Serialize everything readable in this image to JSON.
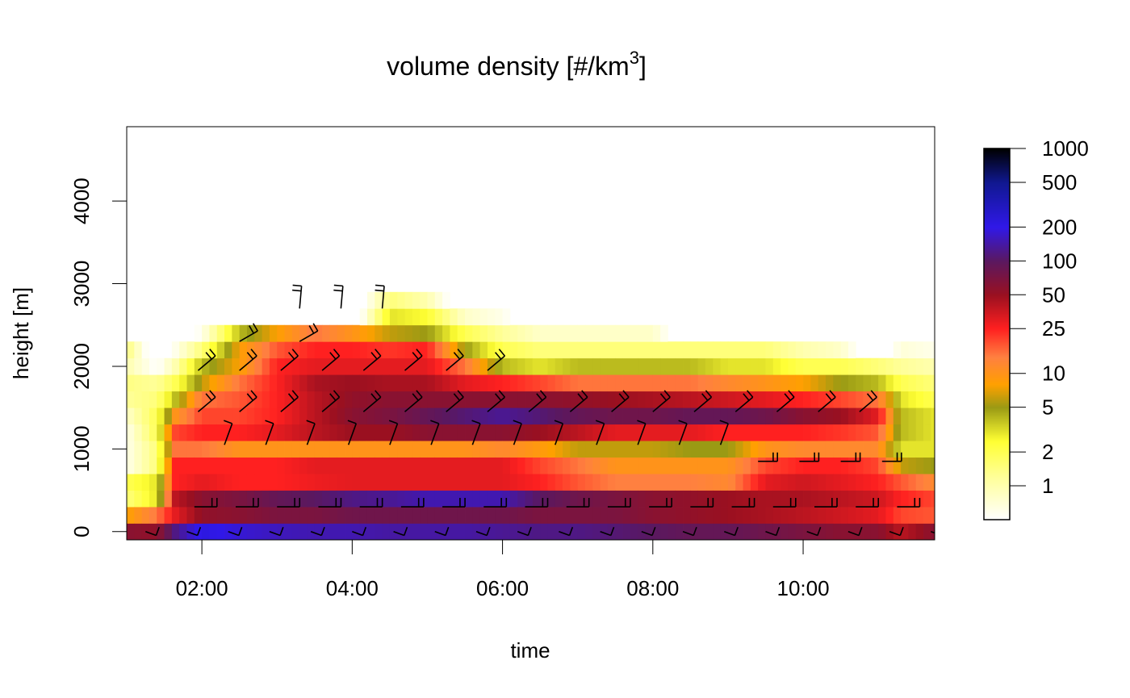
{
  "chart_data": {
    "type": "heatmap",
    "title": "volume density [#/km",
    "title_superscript": "3",
    "title_suffix": "]",
    "xlabel": "time",
    "ylabel": "height [m]",
    "x_ticks": [
      "02:00",
      "04:00",
      "06:00",
      "08:00",
      "10:00"
    ],
    "x_tick_hours": [
      2,
      4,
      6,
      8,
      10
    ],
    "xlim_hours": [
      1.0,
      11.75
    ],
    "y_ticks": [
      "0",
      "1000",
      "2000",
      "3000",
      "4000"
    ],
    "y_tick_values": [
      0,
      1000,
      2000,
      3000,
      4000
    ],
    "ylim_m": [
      -100,
      4900
    ],
    "height_bins_m": [
      0,
      200,
      400,
      600,
      800,
      1000,
      1200,
      1400,
      1600,
      1800,
      2000,
      2200,
      2400,
      2600,
      2800,
      3000,
      3200
    ],
    "time_step_hours": 0.1,
    "time_start_hours": 1.0,
    "time_end_hours": 11.75,
    "colorbar": {
      "scale": "log",
      "min": 0.5,
      "max": 1000,
      "tick_values": [
        1,
        2,
        5,
        10,
        25,
        50,
        100,
        200,
        500,
        1000
      ],
      "tick_labels": [
        "1",
        "2",
        "5",
        "10",
        "25",
        "50",
        "100",
        "200",
        "500",
        "1000"
      ],
      "color_stops": [
        {
          "v": 0.5,
          "color": "#ffffff"
        },
        {
          "v": 1.2,
          "color": "#ffff99"
        },
        {
          "v": 2.5,
          "color": "#ffff33"
        },
        {
          "v": 5,
          "color": "#9a9a14"
        },
        {
          "v": 8,
          "color": "#ffa000"
        },
        {
          "v": 14,
          "color": "#ff8040"
        },
        {
          "v": 25,
          "color": "#ff2020"
        },
        {
          "v": 50,
          "color": "#9a1020"
        },
        {
          "v": 100,
          "color": "#5a1860"
        },
        {
          "v": 200,
          "color": "#3018e8"
        },
        {
          "v": 500,
          "color": "#101890"
        },
        {
          "v": 1000,
          "color": "#000000"
        }
      ]
    },
    "density_profiles": [
      {
        "t": 1.0,
        "values": [
          60,
          8,
          1.5,
          2,
          0.6,
          0.6,
          0.6,
          0.8,
          1.2,
          1.4,
          1,
          1.5
        ]
      },
      {
        "t": 1.4,
        "values": [
          55,
          15,
          3,
          3,
          1.5,
          1.5,
          2,
          2,
          1.5,
          1.2,
          0.5
        ]
      },
      {
        "t": 1.65,
        "values": [
          120,
          30,
          40,
          25,
          25,
          15,
          20,
          10,
          4,
          2,
          1,
          0.6
        ]
      },
      {
        "t": 2.0,
        "values": [
          220,
          55,
          60,
          30,
          25,
          15,
          25,
          20,
          15,
          6,
          4,
          1.5,
          0.6
        ]
      },
      {
        "t": 2.5,
        "values": [
          180,
          60,
          70,
          25,
          25,
          10,
          25,
          20,
          18,
          15,
          8,
          8,
          4
        ]
      },
      {
        "t": 3.0,
        "values": [
          160,
          70,
          90,
          25,
          25,
          10,
          30,
          25,
          25,
          25,
          25,
          18,
          8
        ]
      },
      {
        "t": 3.5,
        "values": [
          150,
          70,
          100,
          28,
          30,
          10,
          40,
          40,
          40,
          45,
          30,
          25,
          15
        ]
      },
      {
        "t": 4.0,
        "values": [
          150,
          80,
          120,
          30,
          30,
          10,
          50,
          60,
          55,
          50,
          30,
          25,
          10
        ]
      },
      {
        "t": 4.5,
        "values": [
          140,
          80,
          130,
          30,
          30,
          10,
          50,
          70,
          60,
          45,
          30,
          22,
          6,
          3,
          1.5
        ]
      },
      {
        "t": 5.0,
        "values": [
          140,
          80,
          150,
          30,
          30,
          10,
          60,
          90,
          60,
          45,
          30,
          25,
          5,
          2.5,
          1
        ]
      },
      {
        "t": 5.5,
        "values": [
          140,
          80,
          150,
          30,
          30,
          10,
          60,
          110,
          60,
          30,
          15,
          5,
          2,
          0.8
        ]
      },
      {
        "t": 6.0,
        "values": [
          130,
          80,
          150,
          30,
          30,
          12,
          60,
          130,
          60,
          25,
          4,
          2,
          1.2,
          0.6
        ]
      },
      {
        "t": 6.5,
        "values": [
          120,
          70,
          100,
          25,
          20,
          9,
          50,
          110,
          60,
          20,
          3,
          1.5,
          0.8
        ]
      },
      {
        "t": 7.0,
        "values": [
          120,
          70,
          80,
          18,
          15,
          6,
          40,
          90,
          55,
          15,
          4,
          1.5,
          0.8
        ]
      },
      {
        "t": 7.5,
        "values": [
          110,
          70,
          70,
          14,
          10,
          6,
          30,
          80,
          50,
          15,
          4,
          1.5,
          0.8
        ]
      },
      {
        "t": 8.0,
        "values": [
          100,
          60,
          60,
          14,
          10,
          6,
          30,
          80,
          45,
          15,
          4,
          1.5,
          0.8
        ]
      },
      {
        "t": 8.5,
        "values": [
          90,
          55,
          55,
          14,
          10,
          5,
          30,
          90,
          40,
          15,
          4,
          1.5
        ]
      },
      {
        "t": 9.0,
        "values": [
          90,
          50,
          50,
          12,
          10,
          5,
          25,
          90,
          35,
          12,
          3,
          1.5
        ]
      },
      {
        "t": 9.5,
        "values": [
          80,
          45,
          45,
          30,
          20,
          10,
          25,
          80,
          30,
          10,
          3,
          1.5
        ]
      },
      {
        "t": 10.0,
        "values": [
          70,
          40,
          45,
          35,
          25,
          12,
          25,
          60,
          25,
          8,
          2,
          1
        ]
      },
      {
        "t": 10.5,
        "values": [
          60,
          35,
          40,
          30,
          25,
          12,
          22,
          50,
          20,
          5,
          2,
          0.8
        ]
      },
      {
        "t": 11.0,
        "values": [
          60,
          30,
          35,
          25,
          20,
          12,
          18,
          30,
          15,
          4,
          1.5
        ]
      },
      {
        "t": 11.3,
        "values": [
          40,
          20,
          25,
          18,
          6,
          3,
          4,
          4,
          3,
          2,
          1.2,
          0.7
        ]
      },
      {
        "t": 11.75,
        "values": [
          60,
          18,
          20,
          12,
          5,
          3,
          3,
          3,
          2,
          1.5,
          1,
          0.6
        ]
      }
    ],
    "wind_barbs": {
      "rows": [
        {
          "height_m": 0,
          "t_start": 1.25,
          "t_end": 11.75,
          "step": 0.55,
          "angle": -20,
          "len": 14,
          "barbs": 1
        },
        {
          "height_m": 300,
          "t_start": 1.9,
          "t_end": 11.75,
          "step": 0.55,
          "angle": 0,
          "len": 28,
          "barbs": 2
        },
        {
          "height_m": 850,
          "t_start": 9.4,
          "t_end": 11.25,
          "step": 0.55,
          "angle": 0,
          "len": 24,
          "barbs": 2
        },
        {
          "height_m": 1050,
          "t_start": 2.3,
          "t_end": 9.2,
          "step": 0.55,
          "angle": 70,
          "len": 28,
          "barbs": 1
        },
        {
          "height_m": 1450,
          "t_start": 1.95,
          "t_end": 11.0,
          "step": 0.55,
          "angle": 40,
          "len": 28,
          "barbs": 2
        },
        {
          "height_m": 1950,
          "t_start": 1.95,
          "t_end": 6.2,
          "step": 0.55,
          "angle": 40,
          "len": 28,
          "barbs": 2
        },
        {
          "height_m": 2300,
          "t_start": 2.5,
          "t_end": 3.3,
          "step": 0.8,
          "angle": 30,
          "len": 26,
          "barbs": 2
        },
        {
          "height_m": 2700,
          "t_start": 3.3,
          "t_end": 4.9,
          "step": 0.55,
          "angle": 85,
          "len": 28,
          "barbs": 2
        }
      ]
    }
  }
}
